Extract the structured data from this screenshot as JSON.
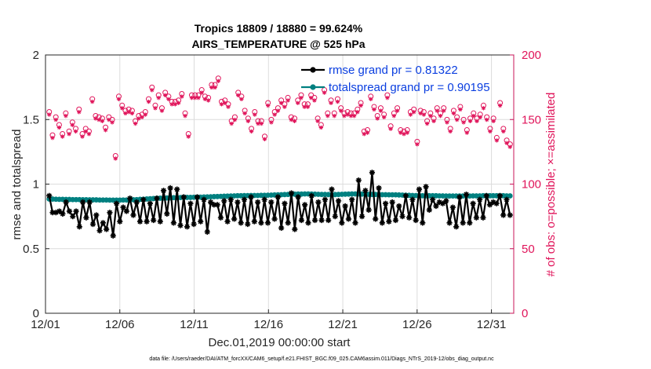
{
  "chart_data": {
    "type": "line",
    "title_line1": "Tropics 18809 / 18880 = 99.624%",
    "title_line2": "AIRS_TEMPERATURE @ 525 hPa",
    "xlabel": "Dec.01,2019 00:00:00 start",
    "ylabel_left": "rmse and totalspread",
    "ylabel_right": "# of obs: o=possible; ×=assimilated",
    "xlim": [
      0,
      31.5
    ],
    "ylim_left": [
      0,
      2
    ],
    "ylim_right": [
      0,
      200
    ],
    "x_ticks": [
      {
        "value": 0,
        "label": "12/01"
      },
      {
        "value": 5,
        "label": "12/06"
      },
      {
        "value": 10,
        "label": "12/11"
      },
      {
        "value": 15,
        "label": "12/16"
      },
      {
        "value": 20,
        "label": "12/21"
      },
      {
        "value": 25,
        "label": "12/26"
      },
      {
        "value": 30,
        "label": "12/31"
      }
    ],
    "y_ticks_left": [
      {
        "value": 0,
        "label": "0"
      },
      {
        "value": 0.5,
        "label": "0.5"
      },
      {
        "value": 1,
        "label": "1"
      },
      {
        "value": 1.5,
        "label": "1.5"
      },
      {
        "value": 2,
        "label": "2"
      }
    ],
    "y_ticks_right": [
      {
        "value": 0,
        "label": "0"
      },
      {
        "value": 50,
        "label": "50"
      },
      {
        "value": 100,
        "label": "100"
      },
      {
        "value": 150,
        "label": "150"
      },
      {
        "value": 200,
        "label": "200"
      }
    ],
    "series": [
      {
        "name": "rmse grand pr = 0.81322",
        "axis": "left",
        "color": "#000000",
        "marker": "star",
        "values": [
          0.91,
          0.78,
          0.78,
          0.79,
          0.77,
          0.86,
          0.79,
          0.75,
          0.79,
          0.67,
          0.86,
          0.74,
          0.86,
          0.69,
          0.76,
          0.64,
          0.7,
          0.65,
          0.78,
          0.6,
          0.85,
          0.71,
          0.82,
          0.79,
          0.89,
          0.76,
          0.86,
          0.71,
          0.88,
          0.71,
          0.85,
          0.72,
          0.89,
          0.71,
          0.95,
          0.77,
          0.97,
          0.7,
          0.96,
          0.68,
          0.9,
          0.67,
          0.85,
          0.69,
          0.9,
          0.71,
          0.88,
          0.63,
          0.86,
          0.84,
          0.84,
          0.74,
          0.87,
          0.71,
          0.88,
          0.73,
          0.86,
          0.7,
          0.88,
          0.69,
          0.9,
          0.71,
          0.86,
          0.7,
          0.88,
          0.7,
          0.86,
          0.73,
          0.9,
          0.66,
          0.85,
          0.7,
          0.93,
          0.65,
          0.9,
          0.72,
          0.84,
          0.7,
          0.91,
          0.72,
          0.86,
          0.72,
          0.88,
          0.72,
          0.96,
          0.75,
          0.87,
          0.7,
          0.83,
          0.73,
          0.88,
          0.7,
          1.03,
          0.75,
          0.95,
          0.8,
          1.09,
          0.73,
          0.97,
          0.7,
          0.85,
          0.71,
          0.86,
          0.72,
          0.83,
          0.75,
          0.91,
          0.74,
          0.88,
          0.72,
          0.96,
          0.7,
          0.98,
          0.8,
          0.88,
          0.83,
          0.86,
          0.85,
          0.87,
          0.7,
          0.82,
          0.67,
          0.9,
          0.7,
          0.92,
          0.7,
          0.85,
          0.74,
          0.88,
          0.74,
          0.91,
          0.84,
          0.86,
          0.85,
          0.91,
          0.76,
          0.88,
          0.76
        ]
      },
      {
        "name": "totalspread grand pr = 0.90195",
        "axis": "left",
        "color": "#008080",
        "marker": "dot",
        "values": [
          0.885,
          0.884,
          0.883,
          0.882,
          0.882,
          0.881,
          0.881,
          0.88,
          0.88,
          0.88,
          0.879,
          0.879,
          0.878,
          0.878,
          0.878,
          0.877,
          0.877,
          0.877,
          0.876,
          0.876,
          0.876,
          0.876,
          0.877,
          0.877,
          0.878,
          0.879,
          0.88,
          0.882,
          0.883,
          0.885,
          0.887,
          0.888,
          0.89,
          0.891,
          0.892,
          0.893,
          0.894,
          0.895,
          0.896,
          0.896,
          0.897,
          0.897,
          0.897,
          0.898,
          0.898,
          0.899,
          0.9,
          0.901,
          0.902,
          0.903,
          0.904,
          0.905,
          0.906,
          0.907,
          0.908,
          0.909,
          0.91,
          0.91,
          0.911,
          0.911,
          0.912,
          0.912,
          0.912,
          0.913,
          0.913,
          0.914,
          0.915,
          0.916,
          0.917,
          0.918,
          0.919,
          0.92,
          0.921,
          0.922,
          0.923,
          0.923,
          0.924,
          0.924,
          0.923,
          0.922,
          0.921,
          0.92,
          0.92,
          0.919,
          0.919,
          0.919,
          0.92,
          0.921,
          0.922,
          0.923,
          0.924,
          0.924,
          0.924,
          0.923,
          0.922,
          0.921,
          0.92,
          0.92,
          0.919,
          0.918,
          0.918,
          0.917,
          0.917,
          0.917,
          0.916,
          0.915,
          0.914,
          0.913,
          0.912,
          0.911,
          0.911,
          0.91,
          0.91,
          0.91,
          0.91,
          0.91,
          0.909,
          0.909,
          0.908,
          0.908,
          0.908,
          0.908,
          0.908,
          0.908,
          0.908,
          0.908,
          0.909,
          0.909,
          0.909,
          0.91,
          0.91,
          0.91,
          0.91,
          0.91,
          0.91,
          0.91,
          0.909,
          0.909
        ]
      },
      {
        "name": "possible obs",
        "axis": "right",
        "color": "#e0145a",
        "marker": "circle",
        "values": [
          155,
          137,
          151,
          145,
          138,
          154,
          140,
          147,
          142,
          157,
          138,
          142,
          140,
          165,
          152,
          151,
          150,
          143,
          151,
          149,
          121,
          167,
          160,
          156,
          157,
          156,
          148,
          152,
          153,
          155,
          165,
          174,
          160,
          168,
          158,
          170,
          167,
          163,
          163,
          164,
          169,
          154,
          138,
          168,
          168,
          168,
          172,
          167,
          166,
          176,
          176,
          181,
          163,
          164,
          161,
          148,
          151,
          170,
          167,
          156,
          150,
          142,
          155,
          148,
          148,
          136,
          162,
          149,
          155,
          158,
          164,
          161,
          166,
          151,
          150,
          164,
          168,
          161,
          161,
          168,
          166,
          150,
          145,
          172,
          154,
          164,
          154,
          165,
          158,
          154,
          155,
          154,
          154,
          157,
          162,
          140,
          141,
          167,
          159,
          152,
          158,
          153,
          168,
          144,
          154,
          158,
          141,
          140,
          141,
          155,
          157,
          132,
          156,
          155,
          148,
          154,
          150,
          158,
          154,
          158,
          149,
          142,
          156,
          151,
          159,
          149,
          141,
          150,
          154,
          150,
          153,
          160,
          151,
          142,
          150,
          135,
          162,
          142,
          133,
          130
        ]
      },
      {
        "name": "assimilated obs",
        "axis": "right",
        "color": "#e0145a",
        "marker": "cross",
        "values": [
          155,
          137,
          151,
          145,
          138,
          154,
          140,
          147,
          142,
          157,
          138,
          142,
          140,
          165,
          152,
          151,
          150,
          143,
          151,
          149,
          121,
          167,
          160,
          156,
          157,
          156,
          148,
          152,
          153,
          155,
          165,
          174,
          160,
          168,
          158,
          170,
          167,
          163,
          163,
          164,
          169,
          154,
          138,
          168,
          168,
          168,
          172,
          167,
          166,
          176,
          176,
          181,
          163,
          164,
          161,
          148,
          151,
          170,
          167,
          156,
          150,
          142,
          155,
          148,
          148,
          136,
          162,
          149,
          155,
          158,
          164,
          161,
          166,
          151,
          150,
          164,
          168,
          161,
          161,
          168,
          166,
          150,
          145,
          172,
          154,
          164,
          154,
          165,
          158,
          154,
          155,
          154,
          154,
          157,
          162,
          140,
          141,
          167,
          159,
          152,
          158,
          153,
          168,
          144,
          154,
          158,
          141,
          140,
          141,
          155,
          157,
          132,
          156,
          155,
          148,
          154,
          150,
          158,
          154,
          158,
          149,
          142,
          156,
          151,
          159,
          149,
          141,
          150,
          154,
          150,
          153,
          160,
          151,
          142,
          150,
          135,
          162,
          142,
          133,
          130
        ]
      }
    ],
    "footnote": "data file: /Users/raeder/DAI/ATM_forcXX/CAM6_setup/f.e21.FHIST_BGC.f09_025.CAM6assim.011/Diags_NTrS_2019-12/obs_diag_output.nc"
  }
}
